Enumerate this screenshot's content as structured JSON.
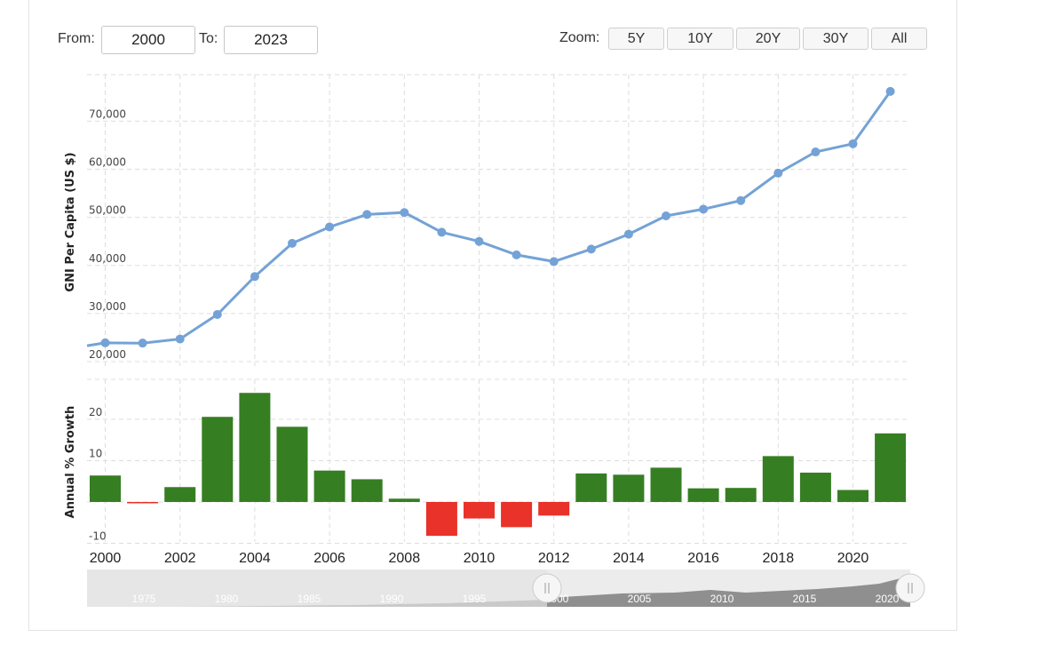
{
  "range": {
    "from_label": "From:",
    "from_value": "2000",
    "to_label": "To:",
    "to_value": "2023"
  },
  "zoom": {
    "label": "Zoom:",
    "buttons": [
      "5Y",
      "10Y",
      "20Y",
      "30Y",
      "All"
    ]
  },
  "colors": {
    "line": "#74a2d6",
    "positive": "#367e22",
    "negative": "#e8322a",
    "grid": "#dddddd"
  },
  "chart_data": [
    {
      "type": "line",
      "ylabel": "GNI Per Capita (US $)",
      "ylim": [
        20000,
        72000
      ],
      "yticks": [
        "20,000",
        "30,000",
        "40,000",
        "50,000",
        "60,000",
        "70,000"
      ],
      "x": [
        2000,
        2001,
        2002,
        2003,
        2004,
        2005,
        2006,
        2007,
        2008,
        2009,
        2010,
        2011,
        2012,
        2013,
        2014,
        2015,
        2016,
        2017,
        2018,
        2019,
        2020,
        2021
      ],
      "series": [
        {
          "values": [
            23900,
            23850,
            24700,
            29800,
            37700,
            44600,
            48000,
            50600,
            51000,
            46900,
            45000,
            42200,
            40800,
            43400,
            46500,
            50300,
            51700,
            53500,
            59200,
            63600,
            65300,
            76200
          ]
        }
      ],
      "grid": true
    },
    {
      "type": "bar",
      "ylabel": "Annual % Growth",
      "ylim": [
        -10,
        25
      ],
      "yticks": [
        "-10",
        "0",
        "10",
        "20"
      ],
      "x": [
        2000,
        2001,
        2002,
        2003,
        2004,
        2005,
        2006,
        2007,
        2008,
        2009,
        2010,
        2011,
        2012,
        2013,
        2014,
        2015,
        2016,
        2017,
        2018,
        2019,
        2020,
        2021
      ],
      "values": [
        6.4,
        -0.3,
        3.6,
        20.6,
        26.4,
        18.2,
        7.6,
        5.5,
        0.8,
        -8.2,
        -4.0,
        -6.1,
        -3.3,
        6.9,
        6.6,
        8.3,
        3.3,
        3.4,
        11.1,
        7.1,
        2.9,
        16.6
      ],
      "xticks": [
        "2000",
        "2002",
        "2004",
        "2006",
        "2008",
        "2010",
        "2012",
        "2014",
        "2016",
        "2018",
        "2020"
      ],
      "grid": true
    }
  ],
  "navigator": {
    "ticks": [
      "1975",
      "1980",
      "1985",
      "1990",
      "1995",
      "2000",
      "2005",
      "2010",
      "2015",
      "2020"
    ]
  }
}
